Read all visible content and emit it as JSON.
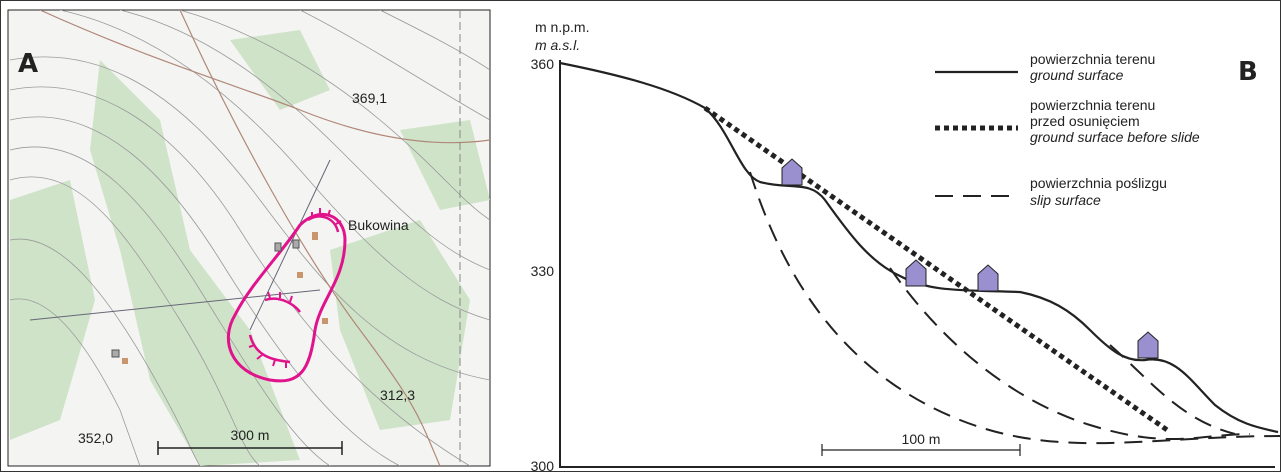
{
  "panel_a": {
    "label": "A",
    "place": "Bukowina",
    "spot_heights": [
      "369,1",
      "312,3",
      "352,0"
    ],
    "scale": "300 m"
  },
  "panel_b": {
    "label": "B",
    "axis_unit": "m n.p.m.",
    "axis_unit_en": "m a.s.l.",
    "yticks": [
      360,
      330,
      300
    ],
    "legend": [
      {
        "pl": "powierzchnia terenu",
        "en": "ground surface"
      },
      {
        "pl": "powierzchnia terenu",
        "pl2": "przed osunięciem",
        "en": "ground surface before slide"
      },
      {
        "pl": "powierzchnia poślizgu",
        "en": "slip surface"
      }
    ],
    "scale": "100 m"
  }
}
